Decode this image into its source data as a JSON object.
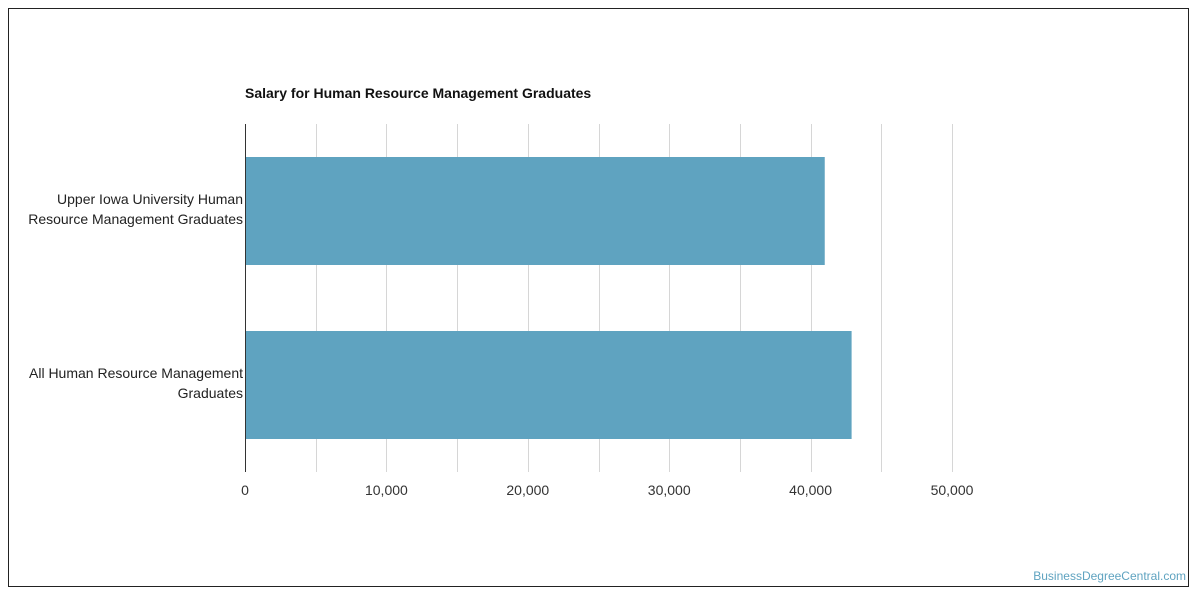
{
  "chart_data": {
    "type": "bar",
    "orientation": "horizontal",
    "title": "Salary for Human Resource Management Graduates",
    "categories": [
      [
        "Upper Iowa University Human",
        "Resource Management Graduates"
      ],
      [
        "All Human Resource Management",
        "Graduates"
      ]
    ],
    "values": [
      41000,
      42900
    ],
    "xlim": [
      0,
      50000
    ],
    "xticks": [
      0,
      10000,
      20000,
      30000,
      40000,
      50000
    ],
    "xtick_labels": [
      "0",
      "10,000",
      "20,000",
      "30,000",
      "40,000",
      "50,000"
    ],
    "grid": true,
    "bar_color": "#5fa3c0",
    "grid_color": "#d6d6d6",
    "axis_color": "#333333"
  },
  "watermark": "BusinessDegreeCentral.com"
}
